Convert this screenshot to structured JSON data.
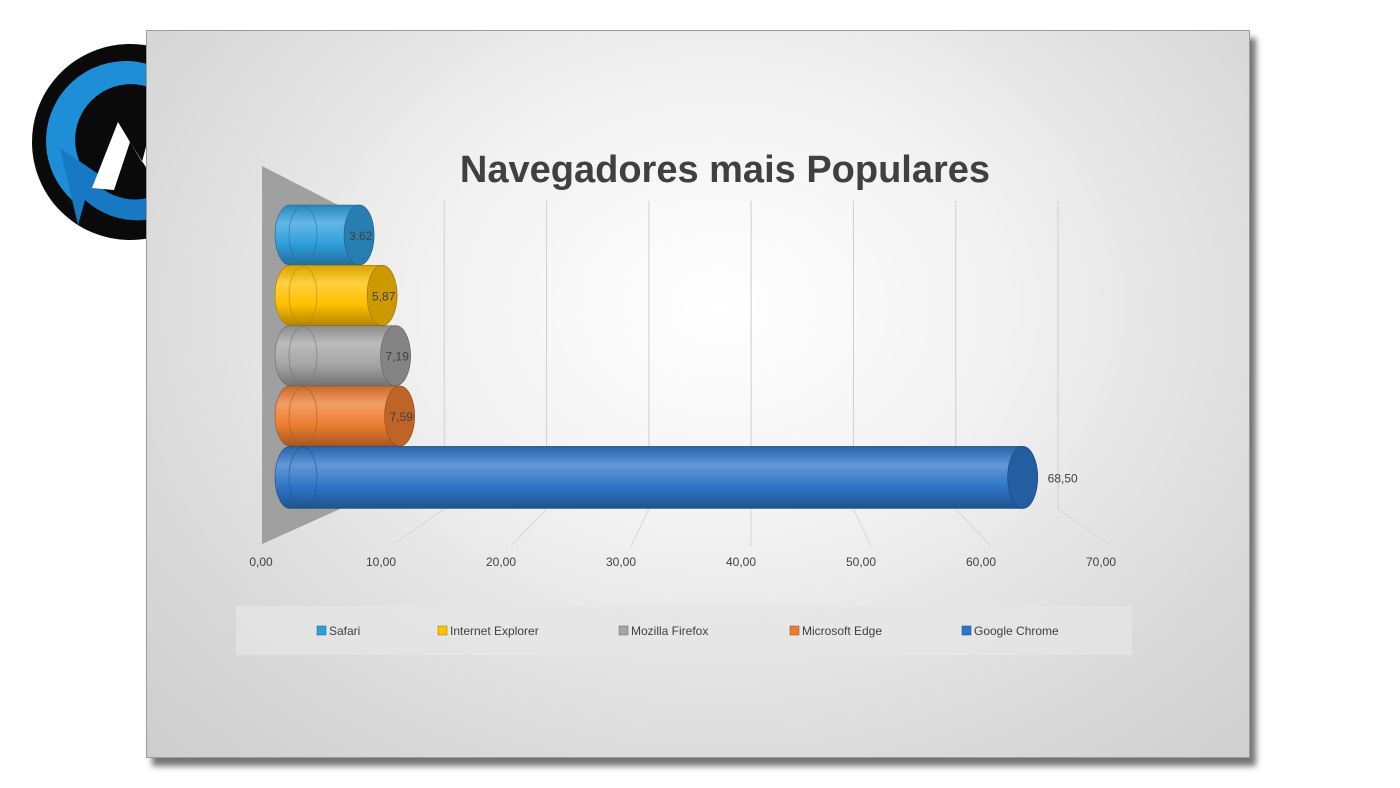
{
  "colors": {
    "safari": "#2f9fdc",
    "internet_explorer": "#ffc000",
    "mozilla_firefox": "#a5a5a5",
    "microsoft_edge": "#ed7d31",
    "google_chrome": "#2e75c8",
    "logo_blue": "#1e8fd6"
  },
  "logo": {
    "icon": "refresh-n-logo-icon"
  },
  "chart_data": {
    "type": "bar",
    "orientation": "horizontal",
    "style": "3d-cylinder",
    "title": "Navegadores mais Populares",
    "categories": [
      "Safari",
      "Internet Explorer",
      "Mozilla Firefox",
      "Microsoft Edge",
      "Google Chrome"
    ],
    "values": [
      3.62,
      5.87,
      7.19,
      7.59,
      68.5
    ],
    "value_labels": [
      "3,62",
      "5,87",
      "7,19",
      "7,59",
      "68,50"
    ],
    "xlim": [
      0,
      70
    ],
    "x_ticks": [
      "0,00",
      "10,00",
      "20,00",
      "30,00",
      "40,00",
      "50,00",
      "60,00",
      "70,00"
    ],
    "grid": true,
    "legend_position": "bottom",
    "legend": [
      "Safari",
      "Internet Explorer",
      "Mozilla Firefox",
      "Microsoft Edge",
      "Google Chrome"
    ]
  }
}
